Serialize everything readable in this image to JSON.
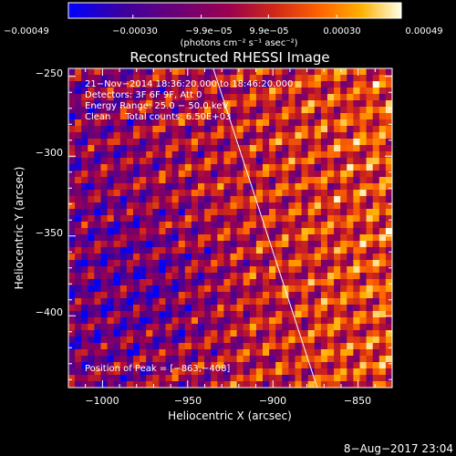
{
  "chart_data": {
    "type": "heatmap",
    "title": "Reconstructed RHESSI Image",
    "xlabel": "Heliocentric X (arcsec)",
    "ylabel": "Heliocentric Y (arcsec)",
    "xlim": [
      -1020,
      -830
    ],
    "ylim": [
      -445,
      -245
    ],
    "x_ticks": [
      {
        "value": -1000,
        "label": "−1000"
      },
      {
        "value": -950,
        "label": "−950"
      },
      {
        "value": -900,
        "label": "−900"
      },
      {
        "value": -850,
        "label": "−850"
      }
    ],
    "y_ticks": [
      {
        "value": -250,
        "label": "−250"
      },
      {
        "value": -300,
        "label": "−300"
      },
      {
        "value": -350,
        "label": "−350"
      },
      {
        "value": -400,
        "label": "−400"
      }
    ],
    "grid": false,
    "colorbar": {
      "position": "top",
      "range": [
        -0.00049,
        0.00049
      ],
      "tick_values": [
        -0.00049,
        -0.0003,
        -9.9e-05,
        9.9e-05,
        0.0003,
        0.00049
      ],
      "tick_labels": [
        "−0.00049",
        "−0.00030",
        "−9.9e−05",
        "9.9e−05",
        "0.00030",
        "0.00049"
      ],
      "unit_label": "(photons cm⁻² s⁻¹ asec⁻²)",
      "colors": [
        "#0000ff",
        "#3c00a0",
        "#6a0078",
        "#9a0050",
        "#d02818",
        "#ff6600",
        "#ffb000",
        "#ffffe8"
      ]
    },
    "info_lines": [
      "21−Nov−2014 18:36:20.000 to 18:46:20.000",
      "Detectors: 3F 6F 9F, Att 0",
      "Energy Range: 25.0 − 50.0 keV",
      "Clean     Total counts: 6.50E+03"
    ],
    "peak_annotation": "Position of Peak = [−863,−408]",
    "limb_line": [
      [
        -935,
        -245
      ],
      [
        -874,
        -445
      ]
    ],
    "limb_color": "#ffffff",
    "footer_date": "8−Aug−2017 23:04"
  }
}
